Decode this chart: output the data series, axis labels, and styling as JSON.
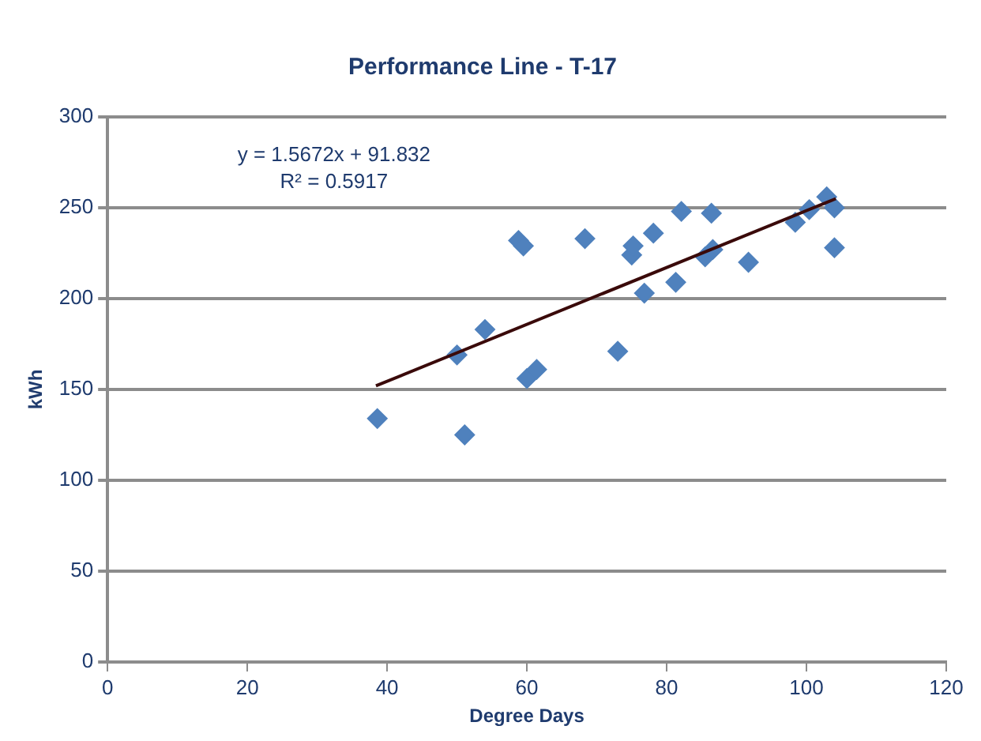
{
  "chart_data": {
    "type": "scatter",
    "title": "Performance Line - T-17",
    "xlabel": "Degree Days",
    "ylabel": "kWh",
    "xlim": [
      0,
      120
    ],
    "xticks": [
      0,
      20,
      40,
      60,
      80,
      100,
      120
    ],
    "ylim": [
      0,
      300
    ],
    "yticks": [
      0,
      50,
      100,
      150,
      200,
      250,
      300
    ],
    "grid": "y",
    "annotations": [
      "y = 1.5672x + 91.832",
      "R² = 0.5917"
    ],
    "series": [
      {
        "marker": "diamond",
        "color": "#4f81bd",
        "x": [
          38.6,
          50,
          51.1,
          54,
          58.8,
          59.5,
          60,
          61.4,
          68.3,
          73,
          75,
          75.2,
          76.8,
          78.1,
          81.3,
          82.1,
          85.5,
          86.6,
          86.4,
          91.7,
          98.4,
          100.4,
          102.9,
          104,
          104
        ],
        "values": [
          134,
          169,
          125,
          183,
          232,
          229,
          156,
          161,
          233,
          171,
          224,
          229,
          203,
          236,
          209,
          248,
          223,
          227,
          247,
          220,
          242,
          249,
          256,
          250,
          228
        ]
      },
      {
        "type": "line",
        "marker": "none",
        "color": "#3a0a0a",
        "x": [
          38.4,
          104.2
        ],
        "values": [
          152,
          255
        ]
      }
    ]
  }
}
